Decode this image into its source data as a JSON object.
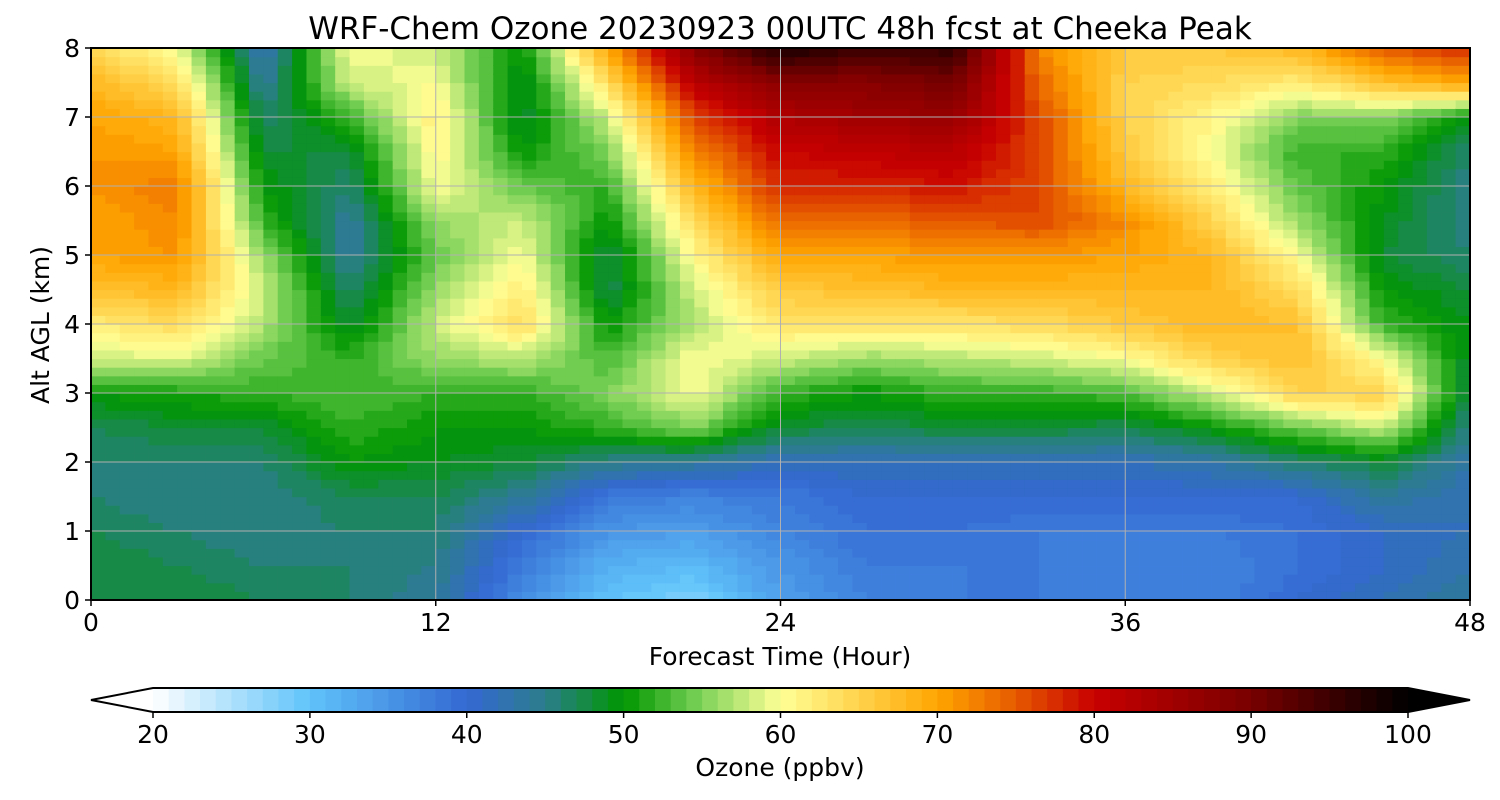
{
  "chart_data": {
    "type": "heatmap",
    "title": "WRF-Chem Ozone  20230923 00UTC 48h fcst at Cheeka Peak",
    "xlabel": "Forecast Time (Hour)",
    "ylabel": "Alt AGL (km)",
    "xlim": [
      0,
      48
    ],
    "ylim": [
      0,
      8
    ],
    "x_ticks": [
      0,
      12,
      24,
      36,
      48
    ],
    "y_ticks": [
      0,
      1,
      2,
      3,
      4,
      5,
      6,
      7,
      8
    ],
    "grid": true,
    "x": [
      0,
      3,
      6,
      9,
      12,
      15,
      18,
      21,
      24,
      27,
      30,
      33,
      36,
      39,
      42,
      45,
      48
    ],
    "y": [
      0,
      0.5,
      1,
      1.5,
      2,
      2.5,
      3,
      3.5,
      4,
      4.5,
      5,
      5.5,
      6,
      6.5,
      7,
      7.5,
      8
    ],
    "z": [
      [
        48,
        48,
        47,
        46,
        44,
        36,
        30,
        28,
        34,
        37,
        38,
        38,
        37,
        37,
        40,
        42,
        44
      ],
      [
        48,
        47,
        46,
        46,
        45,
        38,
        32,
        31,
        35,
        38,
        38,
        38,
        37,
        37,
        39,
        41,
        43
      ],
      [
        47,
        46,
        45,
        46,
        46,
        40,
        35,
        34,
        37,
        39,
        39,
        38,
        38,
        38,
        39,
        41,
        42
      ],
      [
        46,
        45,
        45,
        47,
        47,
        44,
        38,
        37,
        38,
        40,
        40,
        40,
        40,
        40,
        40,
        44,
        42
      ],
      [
        46,
        46,
        46,
        50,
        49,
        48,
        45,
        44,
        42,
        42,
        42,
        42,
        42,
        43,
        46,
        48,
        43
      ],
      [
        47,
        48,
        48,
        52,
        50,
        50,
        52,
        55,
        48,
        47,
        48,
        48,
        47,
        50,
        54,
        58,
        45
      ],
      [
        50,
        51,
        52,
        53,
        52,
        52,
        55,
        60,
        52,
        50,
        52,
        52,
        53,
        58,
        65,
        65,
        47
      ],
      [
        58,
        59,
        54,
        52,
        56,
        57,
        53,
        60,
        58,
        56,
        57,
        58,
        60,
        65,
        67,
        60,
        48
      ],
      [
        62,
        64,
        57,
        48,
        58,
        64,
        50,
        57,
        63,
        63,
        63,
        64,
        66,
        68,
        67,
        52,
        49
      ],
      [
        67,
        68,
        58,
        46,
        56,
        62,
        47,
        58,
        66,
        67,
        68,
        68,
        68,
        68,
        64,
        50,
        48
      ],
      [
        70,
        71,
        56,
        44,
        54,
        60,
        47,
        61,
        70,
        70,
        71,
        71,
        70,
        68,
        60,
        48,
        46
      ],
      [
        70,
        72,
        52,
        44,
        56,
        58,
        50,
        64,
        74,
        74,
        75,
        76,
        72,
        65,
        56,
        49,
        45
      ],
      [
        71,
        73,
        50,
        46,
        60,
        54,
        52,
        68,
        78,
        78,
        79,
        76,
        68,
        62,
        54,
        50,
        45
      ],
      [
        71,
        70,
        48,
        48,
        61,
        50,
        55,
        72,
        80,
        81,
        82,
        76,
        66,
        60,
        52,
        52,
        46
      ],
      [
        70,
        68,
        46,
        52,
        62,
        48,
        58,
        76,
        83,
        85,
        86,
        76,
        65,
        61,
        55,
        55,
        50
      ],
      [
        68,
        64,
        44,
        58,
        60,
        48,
        64,
        82,
        88,
        88,
        90,
        74,
        65,
        64,
        62,
        67,
        70
      ],
      [
        64,
        60,
        42,
        60,
        58,
        50,
        70,
        88,
        98,
        95,
        96,
        72,
        66,
        66,
        68,
        75,
        78
      ]
    ],
    "colorbar": {
      "label": "Ozone  (ppbv)",
      "min": 20,
      "max": 100,
      "ticks": [
        20,
        30,
        40,
        50,
        60,
        70,
        80,
        90,
        100
      ],
      "extend": "both"
    }
  }
}
